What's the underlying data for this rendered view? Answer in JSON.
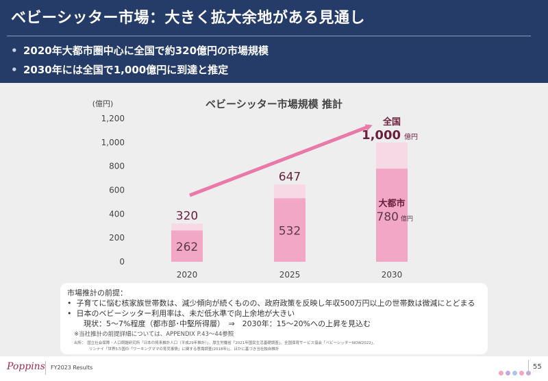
{
  "header": {
    "title": "ベビーシッター市場：大きく拡大余地がある見通し",
    "bullets": [
      "2020年大都市圏中心に全国で約320億円の市場規模",
      "2030年には全国で1,000億円に到達と推定"
    ]
  },
  "chart_data": {
    "type": "bar",
    "title": "ベビーシッター市場規模  推計",
    "ylabel": "(億円)",
    "ylim": [
      0,
      1200
    ],
    "yticks": [
      0,
      200,
      400,
      600,
      800,
      1000,
      1200
    ],
    "yticks_labels": [
      "0",
      "200",
      "400",
      "600",
      "800",
      "1,000",
      "1,200"
    ],
    "categories": [
      "2020",
      "2025",
      "2030"
    ],
    "series": [
      {
        "name": "大都市",
        "values": [
          262,
          532,
          780
        ],
        "labels": [
          "262",
          "532",
          "780"
        ]
      },
      {
        "name": "全国",
        "values": [
          320,
          647,
          1000
        ],
        "labels": [
          "320",
          "647",
          "1,000"
        ]
      }
    ],
    "annotations": {
      "national_label": "全国",
      "unit_label": "億円",
      "metro_label": "大都市"
    },
    "grid": false,
    "colors": {
      "metro": "#f1a7c5",
      "national": "#f7d9e5",
      "arrow": "#e879a8",
      "label": "#6b1d3c",
      "inner_label": "#5a3a48"
    }
  },
  "notes": {
    "heading": "市場推計の前提：",
    "items": [
      "子育てに悩む核家族世帯数は、減少傾向が続くものの、政府政策を反映し年収500万円以上の世帯数は微減にとどまる",
      "日本のベビーシッター利用率は、未だ低水準で向上余地が大きい"
    ],
    "status_line": "現状：5～7%程度（都市部･中堅所得層）　⇒　2030年：15～20%への上昇を見込む",
    "appendix_note": "※当社推計の前提詳細については、APPENDIX P.43～44参照",
    "source_line1": "出所：　国立社会保障・人口問題研究所「日本の将来推計人口（平成29年推計）」、厚生労働省「2021年国民生活基礎調査」、全国保育サービス協会「ベビーシッターNOW2022」、",
    "source_line2": "リンナイ「世界5カ国の「ワーキングママの育児事情」に関する意識調査(2018年)」、ほかに基づき当社独自推計"
  },
  "footer": {
    "brand": "Poppins",
    "report": "FY2023 Results",
    "page": "55",
    "dot_colors": [
      "#f3a6c1",
      "#c6a8d9",
      "#a9c4ea",
      "#f3a6c1",
      "#c6a8d9"
    ]
  }
}
